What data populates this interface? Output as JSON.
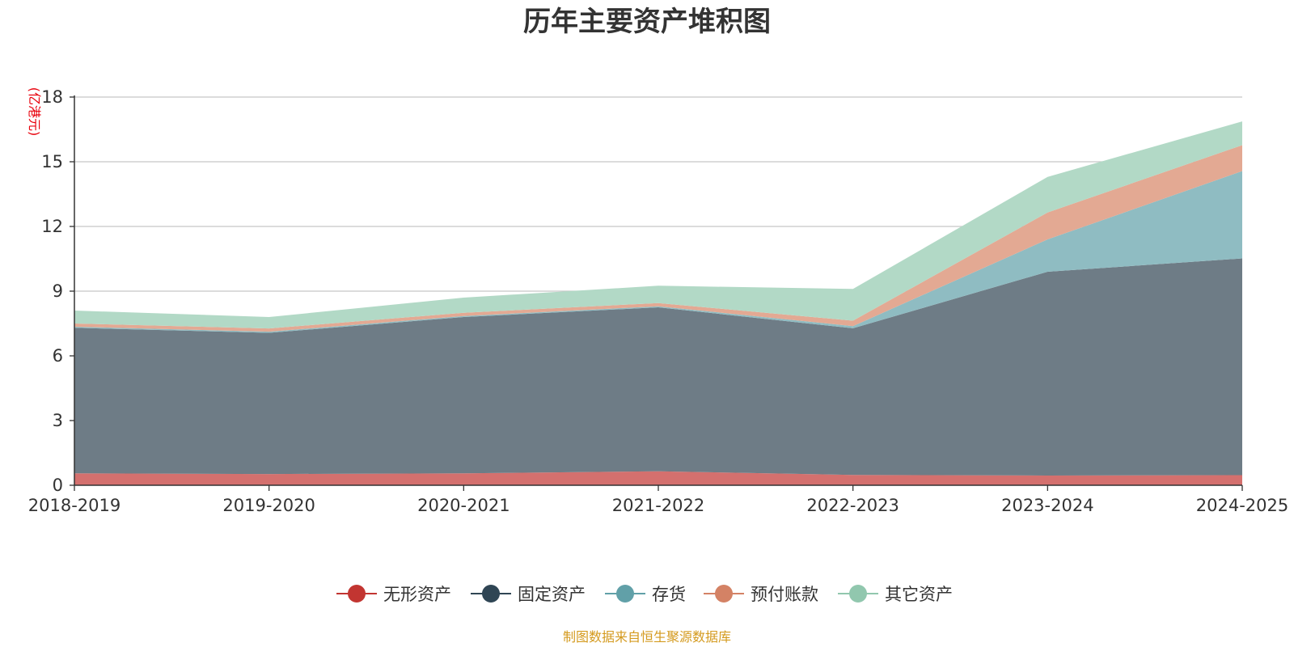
{
  "chart_data": {
    "type": "area",
    "stacked": true,
    "title": "历年主要资产堆积图",
    "y_unit_label": "(亿港元)",
    "categories": [
      "2018-2019",
      "2019-2020",
      "2020-2021",
      "2021-2022",
      "2022-2023",
      "2023-2024",
      "2024-2025"
    ],
    "ylim": [
      0,
      18
    ],
    "yticks": [
      0,
      3,
      6,
      9,
      12,
      15,
      18
    ],
    "grid": true,
    "legend_position": "bottom",
    "series": [
      {
        "name": "无形资产",
        "color": "#c23531",
        "area_color": "#d4706e",
        "values": [
          0.55,
          0.52,
          0.55,
          0.65,
          0.48,
          0.45,
          0.47
        ]
      },
      {
        "name": "固定资产",
        "color": "#2f4554",
        "area_color": "#6e7c86",
        "values": [
          6.75,
          6.55,
          7.25,
          7.6,
          6.8,
          9.45,
          10.05
        ]
      },
      {
        "name": "存货",
        "color": "#61a0a8",
        "area_color": "#8fbcc2",
        "values": [
          0.05,
          0.05,
          0.05,
          0.05,
          0.1,
          1.5,
          4.05
        ]
      },
      {
        "name": "预付账款",
        "color": "#d48265",
        "area_color": "#e3a993",
        "values": [
          0.15,
          0.15,
          0.15,
          0.15,
          0.25,
          1.25,
          1.2
        ]
      },
      {
        "name": "其它资产",
        "color": "#91c7ae",
        "area_color": "#b2d9c6",
        "values": [
          0.6,
          0.53,
          0.7,
          0.8,
          1.47,
          1.65,
          1.1
        ]
      }
    ],
    "source": "制图数据来自恒生聚源数据库",
    "unit_color": "#e8000b",
    "source_color": "#d49a1e"
  }
}
